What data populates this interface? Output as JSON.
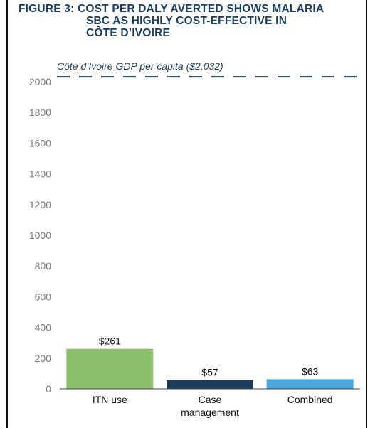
{
  "figure": {
    "title_lines": [
      "FIGURE 3: COST PER DALY AVERTED SHOWS MALARIA",
      "SBC AS HIGHLY COST-EFFECTIVE IN",
      "CÔTE D’IVOIRE"
    ]
  },
  "colors": {
    "title": "#1a3f63",
    "axis_text": "#7a7a7a",
    "label_text": "#111111",
    "reference_line": "#1e3c5a",
    "axis_line": "#444444"
  },
  "chart_data": {
    "type": "bar",
    "title": "FIGURE 3: COST PER DALY AVERTED SHOWS MALARIA SBC AS HIGHLY COST-EFFECTIVE IN CÔTE D’IVOIRE",
    "xlabel": "",
    "ylabel": "",
    "ylim": [
      0,
      2000
    ],
    "yticks": [
      0,
      200,
      400,
      600,
      800,
      1000,
      1200,
      1400,
      1600,
      1800,
      2000
    ],
    "grid": false,
    "categories": [
      [
        "ITN use"
      ],
      [
        "Case",
        "management"
      ],
      [
        "Combined"
      ]
    ],
    "values": [
      261,
      57,
      63
    ],
    "value_labels": [
      "$261",
      "$57",
      "$63"
    ],
    "bar_colors": [
      "#8cc06c",
      "#1b3c5a",
      "#4ba6dc"
    ],
    "reference_line": {
      "value": 2032,
      "label": "Côte d’Ivoire GDP per capita ($2,032)",
      "style": "dashed"
    }
  }
}
